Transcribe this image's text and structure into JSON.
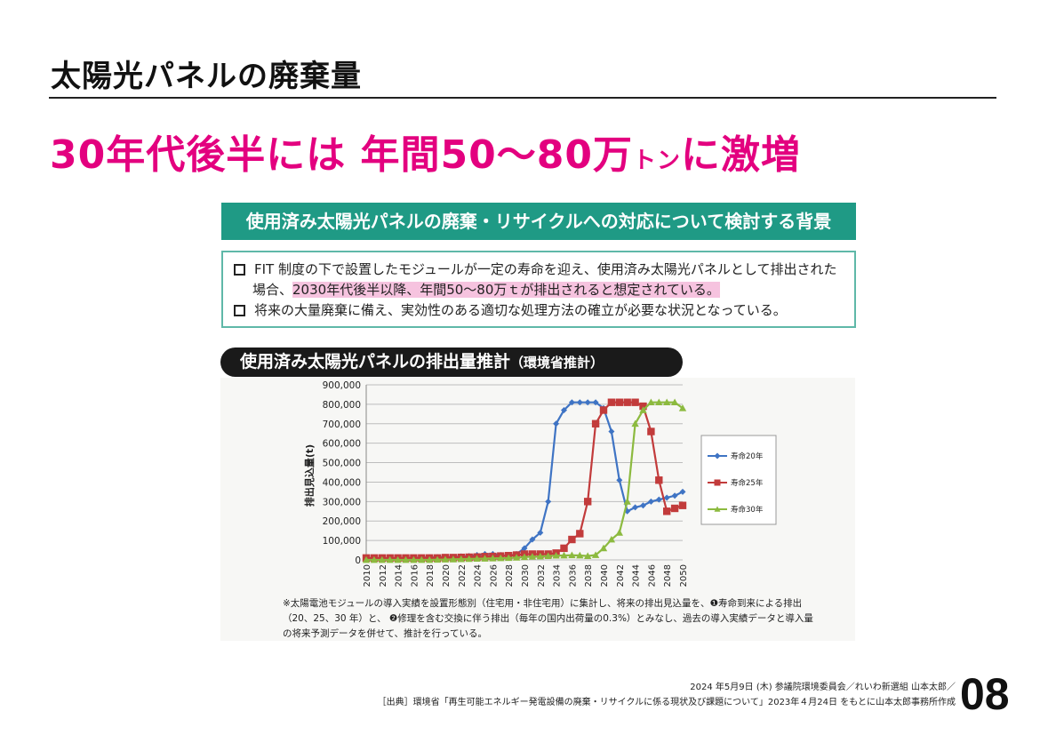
{
  "title": "太陽光パネルの廃棄量",
  "headline": {
    "main": "30年代後半には 年間50～80万",
    "unit": "トン",
    "tail": "に激増"
  },
  "background_box": {
    "heading": "使用済み太陽光パネルの廃棄・リサイクルへの対応について検討する背景",
    "bullet1_line1": "FIT 制度の下で設置したモジュールが一定の寿命を迎え、使用済み太陽光パネルとして排出された",
    "bullet1_line2_prefix": "場合、",
    "bullet1_line2_highlight": "2030年代後半以降、年間50〜80万ｔが排出されると想定されている。",
    "bullet2": "将来の大量廃棄に備え、実効性のある適切な処理方法の確立が必要な状況となっている。"
  },
  "chart_header": {
    "main": "使用済み太陽光パネルの排出量推計",
    "sub": "（環境省推計）"
  },
  "chart_data": {
    "type": "line",
    "title": "使用済み太陽光パネルの排出量推計",
    "ylabel": "排出見込量(t)",
    "xlabel": "",
    "ylim": [
      0,
      900000
    ],
    "yticks": [
      "0",
      "100,000",
      "200,000",
      "300,000",
      "400,000",
      "500,000",
      "600,000",
      "700,000",
      "800,000",
      "900,000"
    ],
    "xticks": [
      "2010",
      "2012",
      "2014",
      "2016",
      "2018",
      "2020",
      "2022",
      "2024",
      "2026",
      "2028",
      "2030",
      "2032",
      "2034",
      "2036",
      "2038",
      "2040",
      "2042",
      "2044",
      "2046",
      "2048",
      "2050"
    ],
    "x_start": 2010,
    "x_end": 2050,
    "grid": true,
    "legend": "right",
    "series": [
      {
        "name": "寿命20年",
        "color": "#3f74c4",
        "marker": "diamond",
        "values": [
          5000,
          6000,
          7000,
          8000,
          9000,
          10000,
          11000,
          12000,
          13000,
          14000,
          15000,
          15000,
          18000,
          20000,
          25000,
          30000,
          30000,
          25000,
          20000,
          30000,
          60000,
          105000,
          140000,
          300000,
          700000,
          770000,
          810000,
          810000,
          810000,
          810000,
          780000,
          660000,
          410000,
          250000,
          270000,
          280000,
          300000,
          310000,
          320000,
          330000,
          350000
        ]
      },
      {
        "name": "寿命25年",
        "color": "#c23b3b",
        "marker": "square",
        "values": [
          10000,
          10000,
          10000,
          10000,
          10000,
          10000,
          10000,
          10000,
          10000,
          10000,
          12000,
          12000,
          13000,
          14000,
          15000,
          17000,
          18000,
          20000,
          22000,
          25000,
          30000,
          30000,
          30000,
          30000,
          35000,
          60000,
          105000,
          135000,
          300000,
          700000,
          770000,
          810000,
          810000,
          810000,
          810000,
          790000,
          660000,
          410000,
          250000,
          265000,
          280000
        ]
      },
      {
        "name": "寿命30年",
        "color": "#8cba3f",
        "marker": "triangle",
        "values": [
          0,
          0,
          0,
          0,
          0,
          0,
          0,
          0,
          0,
          1000,
          2000,
          3000,
          4000,
          5000,
          6000,
          7000,
          8000,
          9000,
          10000,
          12000,
          15000,
          17000,
          18000,
          20000,
          22000,
          23000,
          24000,
          23000,
          20000,
          25000,
          60000,
          105000,
          140000,
          300000,
          700000,
          770000,
          810000,
          810000,
          810000,
          810000,
          780000
        ]
      }
    ]
  },
  "note": {
    "line1": "※太陽電池モジュールの導入実績を設置形態別（住宅用・非住宅用）に集計し、将来の排出見込量を、❶寿命到来による排出",
    "line2": "（20、25、30 年）と、 ❷修理を含む交換に伴う排出（毎年の国内出荷量の0.3%）とみなし、過去の導入実績データと導入量",
    "line3": "の将来予測データを併せて、推計を行っている。"
  },
  "footer": {
    "line1": "2024 年5月9日 (木) 参議院環境委員会／れいわ新選組 山本太郎／",
    "line2": "［出典］環境省「再生可能エネルギー発電設備の廃棄・リサイクルに係る現状及び課題について」2023年４月24日 をもとに山本太郎事務所作成",
    "page": "08"
  },
  "colors": {
    "accent": "#e3007f",
    "teal": "#1f9a85",
    "highlight": "#f6c3df"
  }
}
